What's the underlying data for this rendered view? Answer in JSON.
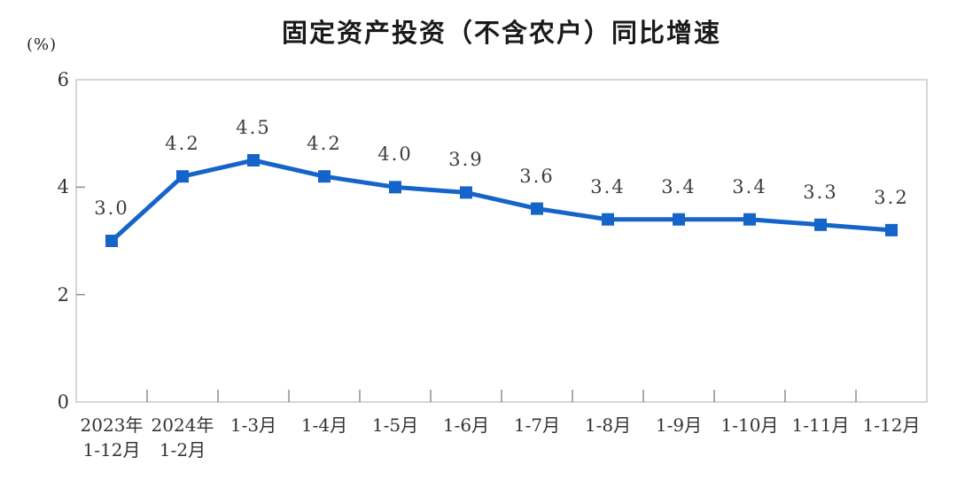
{
  "title": "固定资产投资（不含农户）同比增速",
  "unit_label": "(%)",
  "colors": {
    "series_line": "#1565c8",
    "plot_border": "#c8c8c8",
    "tick_mark": "#8f8f8f",
    "axis_text": "#333333",
    "data_label_text": "#3d3d3d",
    "title_text": "#1a1a1a"
  },
  "chart_data": {
    "type": "line",
    "title": "固定资产投资（不含农户）同比增速",
    "unit": "(%)",
    "categories": [
      "2023年 1-12月",
      "2024年 1-2月",
      "1-3月",
      "1-4月",
      "1-5月",
      "1-6月",
      "1-7月",
      "1-8月",
      "1-9月",
      "1-10月",
      "1-11月",
      "1-12月"
    ],
    "category_lines": [
      [
        "2023年",
        "1-12月"
      ],
      [
        "2024年",
        "1-2月"
      ],
      [
        "1-3月"
      ],
      [
        "1-4月"
      ],
      [
        "1-5月"
      ],
      [
        "1-6月"
      ],
      [
        "1-7月"
      ],
      [
        "1-8月"
      ],
      [
        "1-9月"
      ],
      [
        "1-10月"
      ],
      [
        "1-11月"
      ],
      [
        "1-12月"
      ]
    ],
    "series": [
      {
        "name": "固定资产投资（不含农户）同比增速",
        "values": [
          3.0,
          4.2,
          4.5,
          4.2,
          4.0,
          3.9,
          3.6,
          3.4,
          3.4,
          3.4,
          3.3,
          3.2
        ],
        "data_labels": [
          "3.0",
          "4.2",
          "4.5",
          "4.2",
          "4.0",
          "3.9",
          "3.6",
          "3.4",
          "3.4",
          "3.4",
          "3.3",
          "3.2"
        ],
        "color": "#1565c8",
        "marker": "square"
      }
    ],
    "xlabel": "",
    "ylabel": "(%)",
    "ylim": [
      0,
      6
    ],
    "yticks": [
      0,
      2,
      4,
      6
    ],
    "inner_yticks": [
      2,
      4
    ],
    "grid": false,
    "legend_position": "none"
  }
}
